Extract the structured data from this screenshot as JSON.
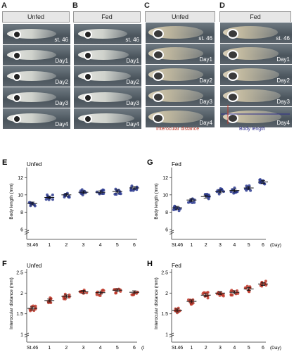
{
  "panels": {
    "A": {
      "letter": "A",
      "title": "Unfed",
      "rows": [
        "st. 46",
        "Day1",
        "Day2",
        "Day3",
        "Day4"
      ]
    },
    "B": {
      "letter": "B",
      "title": "Fed",
      "rows": [
        "st. 46",
        "Day1",
        "Day2",
        "Day3",
        "Day4"
      ]
    },
    "C": {
      "letter": "C",
      "title": "Unfed",
      "rows": [
        "st. 46",
        "Day1",
        "Day2",
        "Day3",
        "Day4"
      ]
    },
    "D": {
      "letter": "D",
      "title": "Fed",
      "rows": [
        "st. 46",
        "Day1",
        "Day2",
        "Day3",
        "Day4"
      ]
    }
  },
  "legend": {
    "interocular": "Interocular distance",
    "body_length": "Body length",
    "interocular_color": "#c0392b",
    "body_color": "#2c2c8c"
  },
  "colors": {
    "blue": "#2b3a8f",
    "red": "#c0392b"
  },
  "chart_data": [
    {
      "letter": "E",
      "title": "Unfed",
      "type": "scatter",
      "ylabel": "Body length (mm)",
      "categories": [
        "St.46",
        "1",
        "2",
        "3",
        "4",
        "5",
        "6"
      ],
      "x_suffix": "",
      "yticks": [
        6,
        8,
        10,
        12
      ],
      "ylim": [
        5.5,
        13
      ],
      "color": "blue",
      "means": [
        9.0,
        9.7,
        10.0,
        10.3,
        10.3,
        10.4,
        10.8
      ]
    },
    {
      "letter": "G",
      "title": "Fed",
      "type": "scatter",
      "ylabel": "Body length (mm)",
      "categories": [
        "St.46",
        "1",
        "2",
        "3",
        "4",
        "5",
        "6"
      ],
      "x_suffix": "(Day)",
      "yticks": [
        6,
        8,
        10,
        12
      ],
      "ylim": [
        5.5,
        13
      ],
      "color": "blue",
      "means": [
        8.5,
        9.4,
        9.8,
        10.4,
        10.5,
        10.8,
        11.5
      ]
    },
    {
      "letter": "F",
      "title": "Unfed",
      "type": "scatter",
      "ylabel": "Interocular distance (mm)",
      "categories": [
        "St.46",
        "1",
        "2",
        "3",
        "4",
        "5",
        "6"
      ],
      "x_suffix": "(Day)",
      "yticks": [
        1,
        1.5,
        2,
        2.5
      ],
      "ylim": [
        0.95,
        2.55
      ],
      "color": "red",
      "means": [
        1.63,
        1.82,
        1.92,
        2.03,
        2.01,
        2.07,
        2.02
      ]
    },
    {
      "letter": "H",
      "title": "Fed",
      "type": "scatter",
      "ylabel": "Interocular distance (mm)",
      "categories": [
        "St.46",
        "1",
        "2",
        "3",
        "4",
        "5",
        "6"
      ],
      "x_suffix": "(Day)",
      "yticks": [
        1,
        1.5,
        2,
        2.5
      ],
      "ylim": [
        0.95,
        2.55
      ],
      "color": "red",
      "means": [
        1.58,
        1.8,
        1.95,
        2.0,
        2.02,
        2.1,
        2.22
      ]
    }
  ]
}
